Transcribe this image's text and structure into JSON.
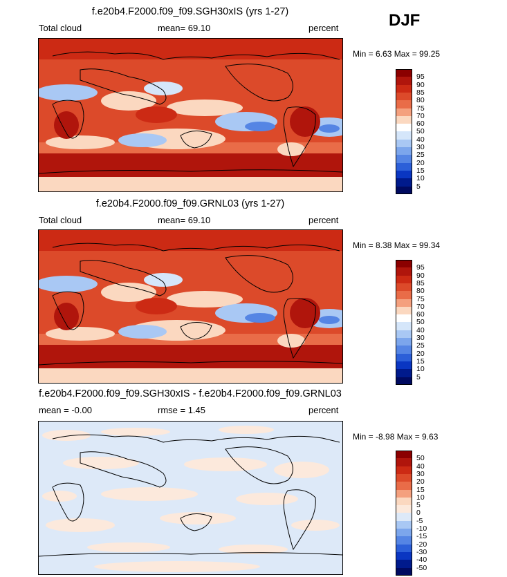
{
  "season": "DJF",
  "panels": [
    {
      "title": "f.e20b4.F2000.f09_f09.SGH30xIS (yrs 1-27)",
      "left_label": "Total cloud",
      "mid_label": "mean=  69.10",
      "units": "percent",
      "minmax": "Min =   6.63 Max =  99.25",
      "colorbar": {
        "labels": [
          "95",
          "90",
          "85",
          "80",
          "75",
          "70",
          "60",
          "50",
          "40",
          "30",
          "25",
          "20",
          "15",
          "10",
          "5"
        ],
        "colors": [
          "#8b0000",
          "#b0150c",
          "#cc2a14",
          "#dc4a2a",
          "#e96c48",
          "#f4a07e",
          "#fbd8c0",
          "#ffffff",
          "#d5e6fa",
          "#a9c8f4",
          "#7ca6ec",
          "#5585e4",
          "#2c5fd8",
          "#0a36c2",
          "#001a8c",
          "#000a60"
        ]
      }
    },
    {
      "title": "f.e20b4.F2000.f09_f09.GRNL03 (yrs 1-27)",
      "left_label": "Total cloud",
      "mid_label": "mean=  69.10",
      "units": "percent",
      "minmax": "Min =   8.38 Max =  99.34",
      "colorbar": {
        "labels": [
          "95",
          "90",
          "85",
          "80",
          "75",
          "70",
          "60",
          "50",
          "40",
          "30",
          "25",
          "20",
          "15",
          "10",
          "5"
        ],
        "colors": [
          "#8b0000",
          "#b0150c",
          "#cc2a14",
          "#dc4a2a",
          "#e96c48",
          "#f4a07e",
          "#fbd8c0",
          "#ffffff",
          "#d5e6fa",
          "#a9c8f4",
          "#7ca6ec",
          "#5585e4",
          "#2c5fd8",
          "#0a36c2",
          "#001a8c",
          "#000a60"
        ]
      }
    },
    {
      "title": "f.e20b4.F2000.f09_f09.SGH30xIS - f.e20b4.F2000.f09_f09.GRNL03",
      "left_label": "mean =  -0.00",
      "mid_label": "rmse =   1.45",
      "units": "percent",
      "minmax": "Min =  -8.98 Max =   9.63",
      "colorbar": {
        "labels": [
          "50",
          "40",
          "30",
          "20",
          "15",
          "10",
          "5",
          "0",
          "-5",
          "-10",
          "-15",
          "-20",
          "-30",
          "-40",
          "-50"
        ],
        "colors": [
          "#8b0000",
          "#b0150c",
          "#cc2a14",
          "#dc4a2a",
          "#e96c48",
          "#f4a07e",
          "#fbd8c0",
          "#fce9dc",
          "#dde9f8",
          "#a9c8f4",
          "#7ca6ec",
          "#5585e4",
          "#2c5fd8",
          "#0a36c2",
          "#001a8c",
          "#000a60"
        ]
      }
    }
  ],
  "chart_data": [
    {
      "type": "heatmap",
      "title": "f.e20b4.F2000.f09_f09.SGH30xIS (yrs 1-27)",
      "variable": "Total cloud",
      "units": "percent",
      "mean": 69.1,
      "min": 6.63,
      "max": 99.25,
      "contour_levels": [
        5,
        10,
        15,
        20,
        25,
        30,
        40,
        50,
        60,
        70,
        75,
        80,
        85,
        90,
        95
      ],
      "season": "DJF"
    },
    {
      "type": "heatmap",
      "title": "f.e20b4.F2000.f09_f09.GRNL03 (yrs 1-27)",
      "variable": "Total cloud",
      "units": "percent",
      "mean": 69.1,
      "min": 8.38,
      "max": 99.34,
      "contour_levels": [
        5,
        10,
        15,
        20,
        25,
        30,
        40,
        50,
        60,
        70,
        75,
        80,
        85,
        90,
        95
      ],
      "season": "DJF"
    },
    {
      "type": "heatmap",
      "title": "f.e20b4.F2000.f09_f09.SGH30xIS - f.e20b4.F2000.f09_f09.GRNL03",
      "units": "percent",
      "mean": -0.0,
      "rmse": 1.45,
      "min": -8.98,
      "max": 9.63,
      "contour_levels": [
        -50,
        -40,
        -30,
        -20,
        -15,
        -10,
        -5,
        0,
        5,
        10,
        15,
        20,
        30,
        40,
        50
      ],
      "season": "DJF"
    }
  ]
}
